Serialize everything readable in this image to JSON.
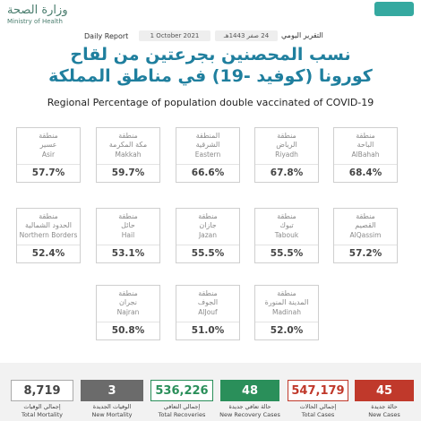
{
  "header": {
    "ministry_ar": "وزارة الصحة",
    "ministry_en": "Ministry of Health",
    "report_en": "Daily Report",
    "date_en": "1 October 2021",
    "date_hijri": "24 صفر 1443هـ",
    "report_ar": "التقرير اليومي",
    "title_ar_1": "نسب المحصنين بجرعتين من لقاح",
    "title_ar_2": "كورونا (كوفيد -19) في مناطق المملكة",
    "subtitle_en": "Regional Percentage of population double vaccinated of COVID-19"
  },
  "rows": [
    [
      {
        "ar1": "منطقة",
        "ar2": "عسير",
        "en": "Asir",
        "pct": "57.7%"
      },
      {
        "ar1": "منطقة",
        "ar2": "مكة المكرمة",
        "en": "Makkah",
        "pct": "59.7%"
      },
      {
        "ar1": "المنطقة",
        "ar2": "الشرقية",
        "en": "Eastern",
        "pct": "66.6%"
      },
      {
        "ar1": "منطقة",
        "ar2": "الرياض",
        "en": "Riyadh",
        "pct": "67.8%"
      },
      {
        "ar1": "منطقة",
        "ar2": "الباحة",
        "en": "AlBahah",
        "pct": "68.4%"
      }
    ],
    [
      {
        "ar1": "منطقة",
        "ar2": "الحدود الشمالية",
        "en": "Northern Borders",
        "pct": "52.4%"
      },
      {
        "ar1": "منطقة",
        "ar2": "حائل",
        "en": "Hail",
        "pct": "53.1%"
      },
      {
        "ar1": "منطقة",
        "ar2": "جازان",
        "en": "Jazan",
        "pct": "55.5%"
      },
      {
        "ar1": "منطقة",
        "ar2": "تبوك",
        "en": "Tabouk",
        "pct": "55.5%"
      },
      {
        "ar1": "منطقة",
        "ar2": "القصيم",
        "en": "AlQassim",
        "pct": "57.2%"
      }
    ],
    [
      {
        "ar1": "منطقة",
        "ar2": "نجران",
        "en": "Najran",
        "pct": "50.8%"
      },
      {
        "ar1": "منطقة",
        "ar2": "الجوف",
        "en": "AlJouf",
        "pct": "51.0%"
      },
      {
        "ar1": "منطقة",
        "ar2": "المدينة المنورة",
        "en": "Madinah",
        "pct": "52.0%"
      }
    ]
  ],
  "stats": [
    {
      "value": "8,719",
      "ar": "إجمالي الوفيات",
      "en": "Total Mortality"
    },
    {
      "value": "3",
      "ar": "الوفيات الجديدة",
      "en": "New Mortality"
    },
    {
      "value": "536,226",
      "ar": "إجمالي التعافي",
      "en": "Total Recoveries"
    },
    {
      "value": "48",
      "ar": "حالة تعافي جديدة",
      "en": "New Recovery Cases"
    },
    {
      "value": "547,179",
      "ar": "إجمالي الحالات",
      "en": "Total Cases"
    },
    {
      "value": "45",
      "ar": "حالة جديدة",
      "en": "New Cases"
    }
  ]
}
